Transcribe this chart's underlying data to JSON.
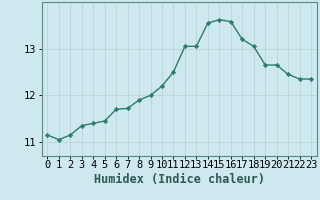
{
  "x": [
    0,
    1,
    2,
    3,
    4,
    5,
    6,
    7,
    8,
    9,
    10,
    11,
    12,
    13,
    14,
    15,
    16,
    17,
    18,
    19,
    20,
    21,
    22,
    23
  ],
  "y": [
    11.15,
    11.05,
    11.15,
    11.35,
    11.4,
    11.45,
    11.7,
    11.72,
    11.9,
    12.0,
    12.2,
    12.5,
    13.05,
    13.05,
    13.55,
    13.62,
    13.58,
    13.2,
    13.05,
    12.65,
    12.65,
    12.45,
    12.35,
    12.35
  ],
  "line_color": "#2e7d6e",
  "marker_color": "#2e7d6e",
  "bg_color": "#cde8ee",
  "grid_color": "#b8d5da",
  "xlabel": "Humidex (Indice chaleur)",
  "xlim": [
    -0.5,
    23.5
  ],
  "ylim": [
    10.7,
    14.0
  ],
  "yticks": [
    11,
    12,
    13
  ],
  "tick_fontsize": 7.5,
  "xlabel_fontsize": 8.5
}
